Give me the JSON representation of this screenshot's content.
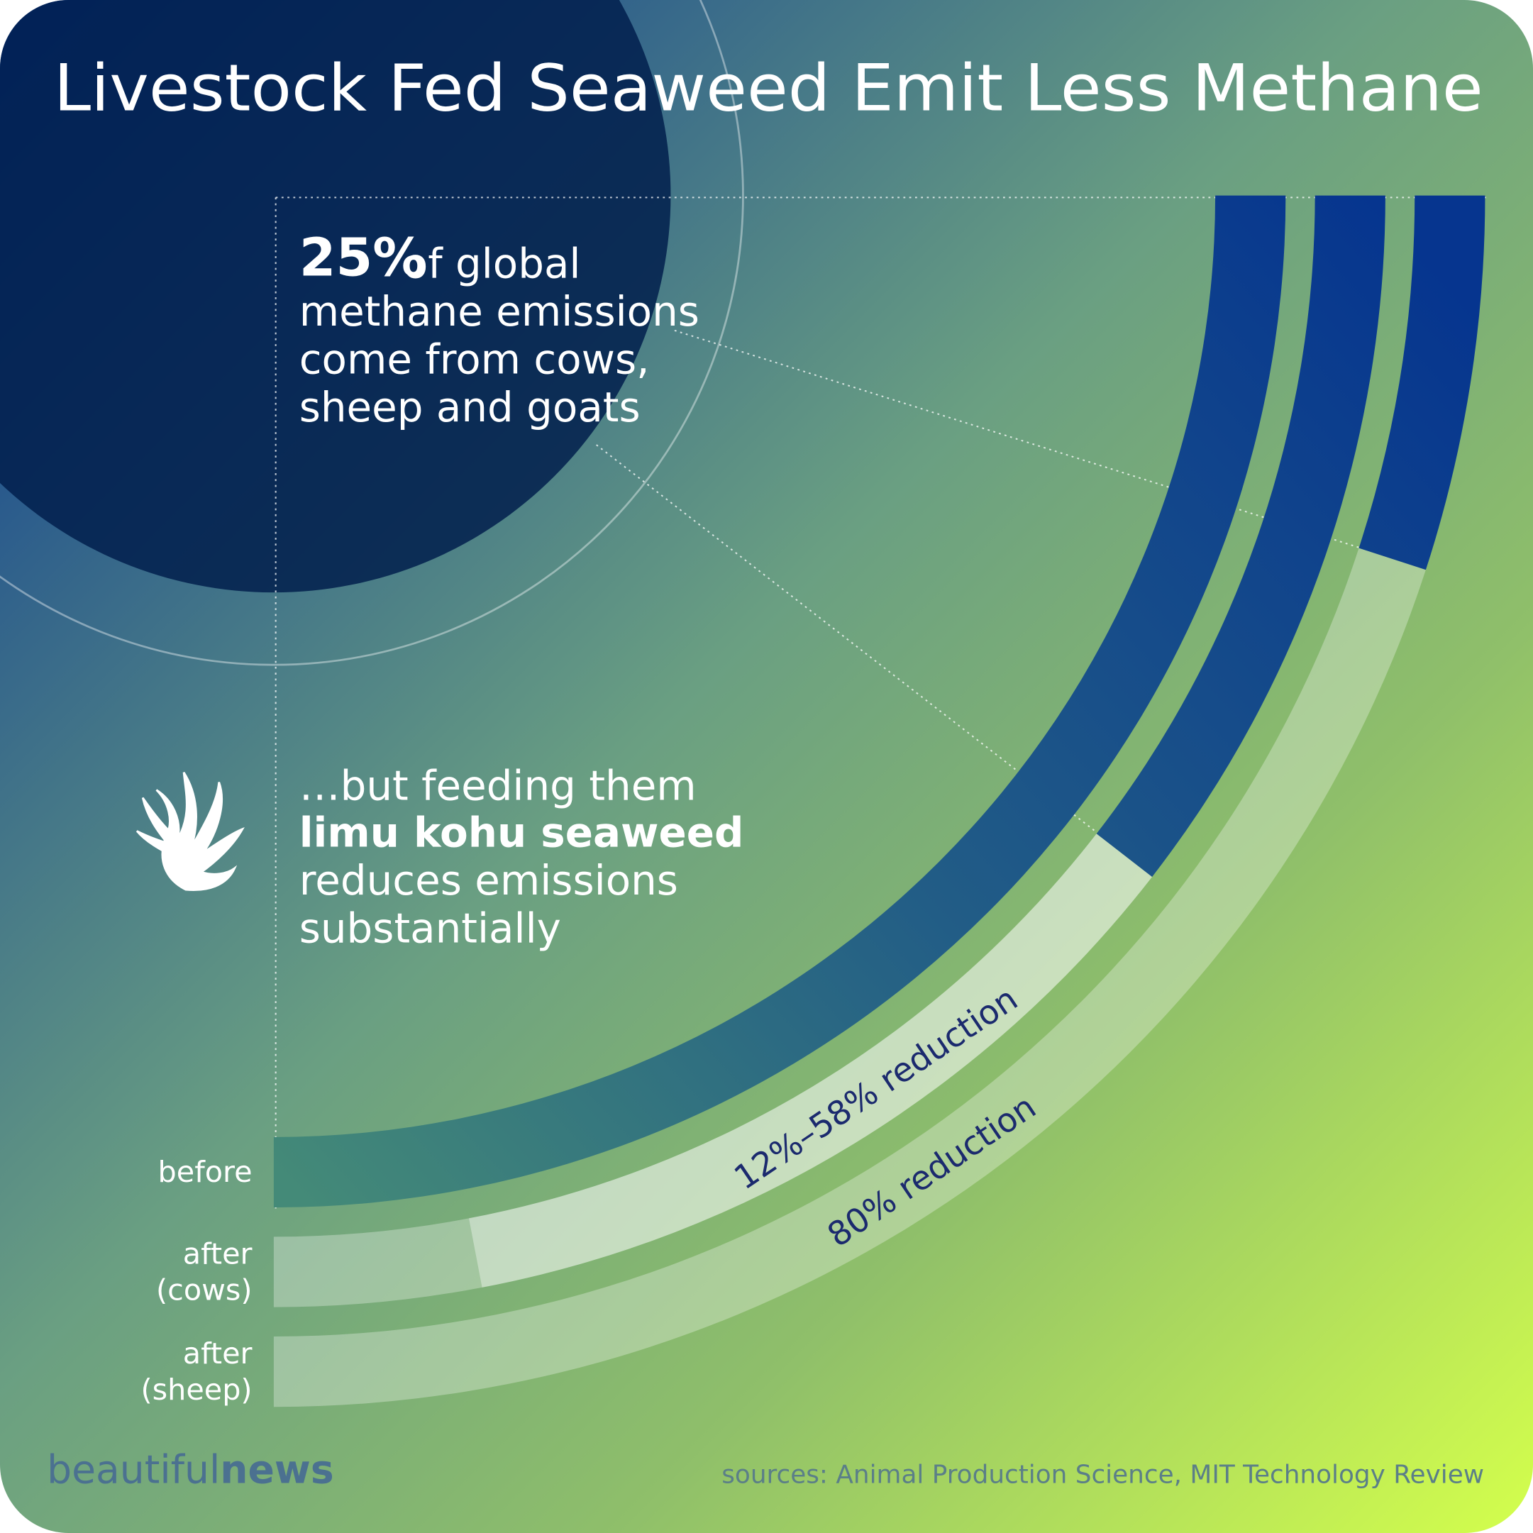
{
  "chart_data": {
    "type": "radial-bar",
    "title": "Livestock Fed Seaweed Emit Less Methane",
    "categories": [
      [
        "before"
      ],
      [
        "after",
        "(cows)"
      ],
      [
        "after",
        "(sheep)"
      ]
    ],
    "min_reduction": [
      0,
      12,
      80
    ],
    "max_reduction": [
      0,
      58,
      80
    ],
    "value_labels": [
      null,
      "12%–58% reduction",
      "80% reduction"
    ]
  },
  "intro": {
    "stat": "25%",
    "lines": [
      "of global",
      "methane emissions",
      "come from cows,",
      "sheep and goats"
    ]
  },
  "finding": {
    "lines": [
      "…but feeding them",
      "limu kohu seaweed",
      "reduces emissions",
      "substantially"
    ]
  },
  "brand": [
    "beautiful",
    "news"
  ],
  "sources": "sources: Animal Production Science, MIT Technology Review"
}
